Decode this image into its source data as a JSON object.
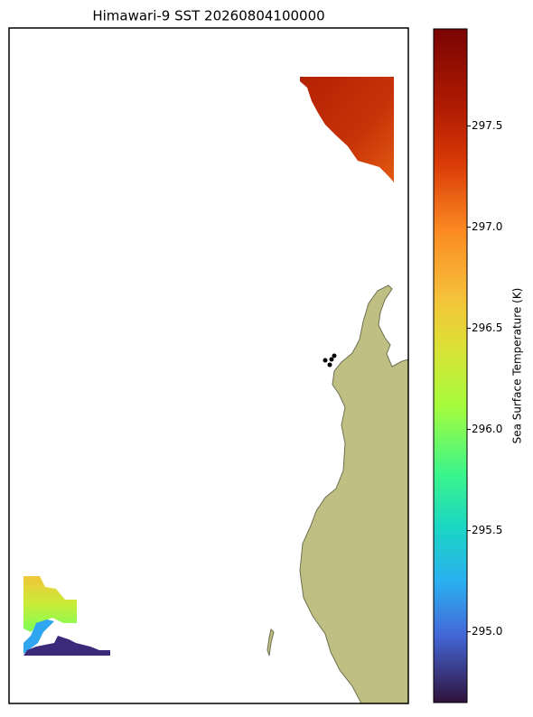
{
  "chart_data": {
    "type": "map",
    "title": "Himawari-9 SST 20260804100000",
    "colorbar_label": "Sea Surface Temperature (K)",
    "clim": [
      294.65,
      297.98
    ],
    "cticks": [
      {
        "value": 295,
        "label": "295.0"
      },
      295.5,
      {
        "value": 296,
        "label": "296.0"
      },
      296.5,
      {
        "value": 297,
        "label": "297.0"
      },
      297.5
    ]
  }
}
